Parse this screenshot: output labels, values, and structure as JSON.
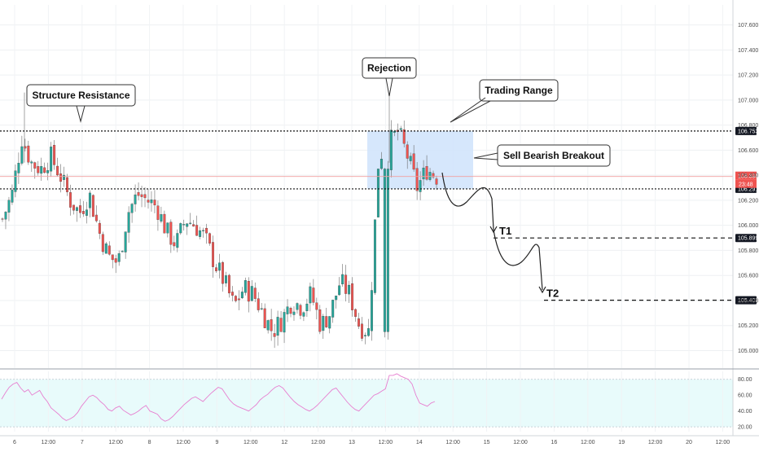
{
  "chart_data": [
    {
      "type": "candlestick",
      "title": "",
      "y_ticks": [
        "107.600",
        "107.400",
        "107.200",
        "107.000",
        "106.800",
        "106.600",
        "106.400",
        "106.200",
        "106.000",
        "105.800",
        "105.600",
        "105.400",
        "105.200",
        "105.000"
      ],
      "x_ticks": [
        "6",
        "12:00",
        "7",
        "12:00",
        "8",
        "12:00",
        "9",
        "12:00",
        "12",
        "12:00",
        "13",
        "12:00",
        "14",
        "12:00",
        "15",
        "12:00",
        "16",
        "12:00",
        "19",
        "12:00",
        "20",
        "12:00"
      ],
      "ylim": [
        104.86,
        107.76
      ],
      "grid": true,
      "levels": [
        {
          "name": "Structure Resistance / Trading Range top",
          "value": 106.753,
          "label": "106.753"
        },
        {
          "name": "Trading Range bottom",
          "value": 106.291,
          "label": "106.291"
        },
        {
          "name": "T1",
          "value": 105.899,
          "label": "105.899"
        },
        {
          "name": "T2",
          "value": 105.402,
          "label": "105.402"
        }
      ],
      "current_price": {
        "value": 106.39,
        "label": "106.390",
        "countdown": "23:48"
      },
      "annotations": [
        "Structure Resistance",
        "Rejection",
        "Trading Range",
        "Sell Bearish Breakout",
        "T1",
        "T2"
      ],
      "ohlc_close_path": [
        106.05,
        106.25,
        106.7,
        106.5,
        106.45,
        106.55,
        106.4,
        106.2,
        106.1,
        106.25,
        105.95,
        105.75,
        105.7,
        106.1,
        106.25,
        106.2,
        106.15,
        105.95,
        105.85,
        106.05,
        106.0,
        105.9,
        105.7,
        105.55,
        105.35,
        105.5,
        105.45,
        105.3,
        105.15,
        105.25,
        105.4,
        105.35,
        105.45,
        105.2,
        105.3,
        105.55,
        105.45,
        105.2,
        105.15,
        106.55,
        106.65,
        106.75,
        106.55,
        106.3,
        106.45,
        106.39
      ],
      "colors": {
        "up": "#26a69a",
        "down": "#ef5350",
        "range_box": "#cfe3fb",
        "rsi_line": "#e77fd0",
        "rsi_band": "#e8fbfb",
        "target_marker": "#222222"
      }
    },
    {
      "type": "line",
      "title": "",
      "y_ticks": [
        "80.00",
        "60.00",
        "40.00",
        "20.00"
      ],
      "ylim": [
        14,
        90
      ],
      "band": [
        20,
        80
      ],
      "values": [
        55,
        63,
        70,
        74,
        76,
        69,
        64,
        67,
        60,
        63,
        66,
        58,
        52,
        44,
        40,
        36,
        31,
        28,
        30,
        33,
        38,
        46,
        52,
        58,
        60,
        57,
        52,
        48,
        42,
        40,
        44,
        46,
        41,
        38,
        35,
        37,
        40,
        44,
        47,
        40,
        38,
        36,
        30,
        27,
        29,
        33,
        38,
        43,
        48,
        52,
        56,
        58,
        55,
        52,
        57,
        62,
        66,
        70,
        68,
        61,
        54,
        49,
        46,
        44,
        42,
        40,
        44,
        48,
        54,
        58,
        61,
        66,
        70,
        72,
        69,
        63,
        57,
        52,
        48,
        45,
        42,
        40,
        43,
        47,
        52,
        57,
        62,
        67,
        69,
        63,
        57,
        51,
        46,
        42,
        40,
        45,
        50,
        55,
        60,
        62,
        65,
        68,
        85,
        85,
        87,
        84,
        82,
        80,
        74,
        60,
        50,
        48,
        46,
        50,
        52
      ]
    }
  ]
}
